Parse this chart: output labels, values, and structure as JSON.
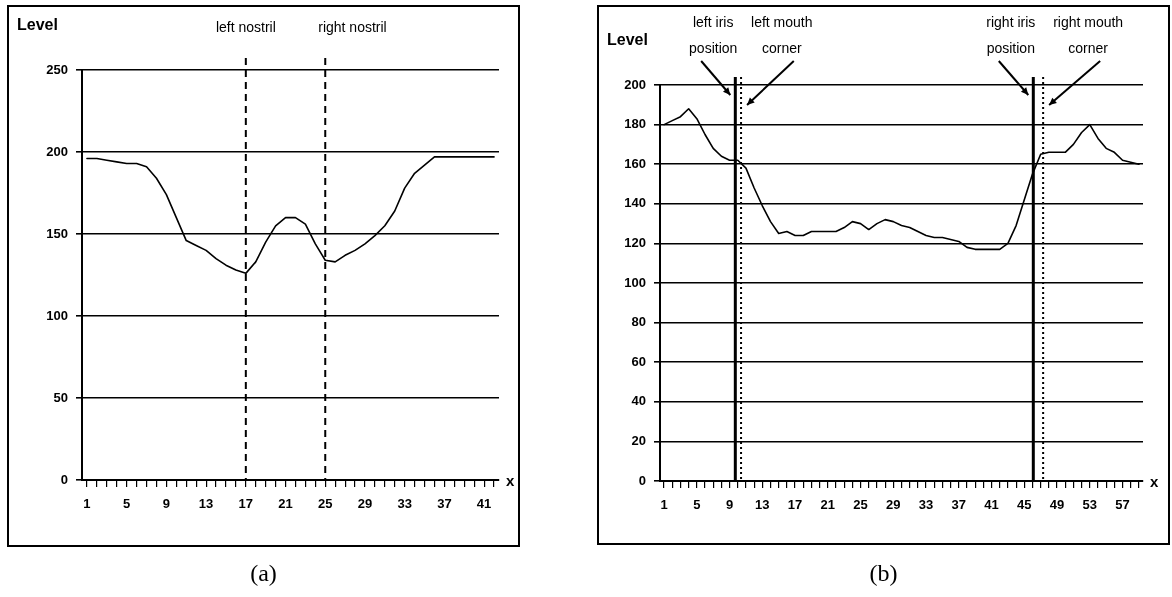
{
  "chart_data": [
    {
      "type": "line",
      "ylabel": "Level",
      "xlabel": "x",
      "x": [
        1,
        2,
        3,
        4,
        5,
        6,
        7,
        8,
        9,
        10,
        11,
        12,
        13,
        14,
        15,
        16,
        17,
        18,
        19,
        20,
        21,
        22,
        23,
        24,
        25,
        26,
        27,
        28,
        29,
        30,
        31,
        32,
        33,
        34,
        35,
        36,
        37,
        38,
        39,
        40,
        41,
        42
      ],
      "series": [
        {
          "color": "#000000",
          "values": [
            196,
            196,
            195,
            194,
            193,
            193,
            191,
            184,
            174,
            160,
            146,
            143,
            140,
            135,
            131,
            128,
            126,
            133,
            145,
            155,
            160,
            160,
            156,
            144,
            134,
            133,
            137,
            140,
            144,
            149,
            155,
            164,
            178,
            187,
            192,
            197,
            197,
            197,
            197,
            197,
            197,
            197
          ]
        }
      ],
      "xlim": [
        0.5,
        42.5
      ],
      "xticks": [
        1,
        {
          "value": 2,
          "label": null
        },
        {
          "value": 3,
          "label": null
        },
        {
          "value": 4,
          "label": null
        },
        5,
        {
          "value": 6,
          "label": null
        },
        {
          "value": 7,
          "label": null
        },
        {
          "value": 8,
          "label": null
        },
        9,
        {
          "value": 10,
          "label": null
        },
        {
          "value": 11,
          "label": null
        },
        {
          "value": 12,
          "label": null
        },
        13,
        {
          "value": 14,
          "label": null
        },
        {
          "value": 15,
          "label": null
        },
        {
          "value": 16,
          "label": null
        },
        17,
        {
          "value": 18,
          "label": null
        },
        {
          "value": 19,
          "label": null
        },
        {
          "value": 20,
          "label": null
        },
        21,
        {
          "value": 22,
          "label": null
        },
        {
          "value": 23,
          "label": null
        },
        {
          "value": 24,
          "label": null
        },
        25,
        {
          "value": 26,
          "label": null
        },
        {
          "value": 27,
          "label": null
        },
        {
          "value": 28,
          "label": null
        },
        29,
        {
          "value": 30,
          "label": null
        },
        {
          "value": 31,
          "label": null
        },
        {
          "value": 32,
          "label": null
        },
        33,
        {
          "value": 34,
          "label": null
        },
        {
          "value": 35,
          "label": null
        },
        {
          "value": 36,
          "label": null
        },
        37,
        {
          "value": 38,
          "label": null
        },
        {
          "value": 39,
          "label": null
        },
        {
          "value": 40,
          "label": null
        },
        41,
        {
          "value": 42,
          "label": null
        }
      ],
      "ylim": [
        0,
        250
      ],
      "yticks": [
        0,
        50,
        100,
        150,
        200,
        250
      ],
      "grid": "y",
      "marker": "none",
      "line_style": "solid",
      "ref_lines": [
        {
          "axis": "x",
          "value": 17,
          "label": "left nostril",
          "line_style": "dashed"
        },
        {
          "axis": "x",
          "value": 25,
          "label": "right nostril",
          "line_style": "dashed"
        }
      ],
      "annotations": [
        "(a)"
      ]
    },
    {
      "type": "line",
      "ylabel": "Level",
      "xlabel": "x",
      "x": [
        1,
        2,
        3,
        4,
        5,
        6,
        7,
        8,
        9,
        10,
        11,
        12,
        13,
        14,
        15,
        16,
        17,
        18,
        19,
        20,
        21,
        22,
        23,
        24,
        25,
        26,
        27,
        28,
        29,
        30,
        31,
        32,
        33,
        34,
        35,
        36,
        37,
        38,
        39,
        40,
        41,
        42,
        43,
        44,
        45,
        46,
        47,
        48,
        49,
        50,
        51,
        52,
        53,
        54,
        55,
        56,
        57,
        58,
        59
      ],
      "series": [
        {
          "color": "#000000",
          "values": [
            180,
            182,
            184,
            188,
            183,
            175,
            168,
            164,
            162,
            162,
            158,
            148,
            139,
            131,
            125,
            126,
            124,
            124,
            126,
            126,
            126,
            126,
            128,
            131,
            130,
            127,
            130,
            132,
            131,
            129,
            128,
            126,
            124,
            123,
            123,
            122,
            121,
            118,
            117,
            117,
            117,
            117,
            120,
            129,
            142,
            155,
            165,
            166,
            166,
            166,
            170,
            176,
            180,
            173,
            168,
            166,
            162,
            161,
            160
          ]
        }
      ],
      "xlim": [
        0.5,
        59.5
      ],
      "xticks": [
        1,
        {
          "value": 2,
          "label": null
        },
        {
          "value": 3,
          "label": null
        },
        {
          "value": 4,
          "label": null
        },
        5,
        {
          "value": 6,
          "label": null
        },
        {
          "value": 7,
          "label": null
        },
        {
          "value": 8,
          "label": null
        },
        9,
        {
          "value": 10,
          "label": null
        },
        {
          "value": 11,
          "label": null
        },
        {
          "value": 12,
          "label": null
        },
        13,
        {
          "value": 14,
          "label": null
        },
        {
          "value": 15,
          "label": null
        },
        {
          "value": 16,
          "label": null
        },
        17,
        {
          "value": 18,
          "label": null
        },
        {
          "value": 19,
          "label": null
        },
        {
          "value": 20,
          "label": null
        },
        21,
        {
          "value": 22,
          "label": null
        },
        {
          "value": 23,
          "label": null
        },
        {
          "value": 24,
          "label": null
        },
        25,
        {
          "value": 26,
          "label": null
        },
        {
          "value": 27,
          "label": null
        },
        {
          "value": 28,
          "label": null
        },
        29,
        {
          "value": 30,
          "label": null
        },
        {
          "value": 31,
          "label": null
        },
        {
          "value": 32,
          "label": null
        },
        33,
        {
          "value": 34,
          "label": null
        },
        {
          "value": 35,
          "label": null
        },
        {
          "value": 36,
          "label": null
        },
        37,
        {
          "value": 38,
          "label": null
        },
        {
          "value": 39,
          "label": null
        },
        {
          "value": 40,
          "label": null
        },
        41,
        {
          "value": 42,
          "label": null
        },
        {
          "value": 43,
          "label": null
        },
        {
          "value": 44,
          "label": null
        },
        45,
        {
          "value": 46,
          "label": null
        },
        {
          "value": 47,
          "label": null
        },
        {
          "value": 48,
          "label": null
        },
        49,
        {
          "value": 50,
          "label": null
        },
        {
          "value": 51,
          "label": null
        },
        {
          "value": 52,
          "label": null
        },
        53,
        {
          "value": 54,
          "label": null
        },
        {
          "value": 55,
          "label": null
        },
        {
          "value": 56,
          "label": null
        },
        57,
        {
          "value": 58,
          "label": null
        },
        {
          "value": 59,
          "label": null
        }
      ],
      "ylim": [
        0,
        200
      ],
      "yticks": [
        0,
        20,
        40,
        60,
        80,
        100,
        120,
        140,
        160,
        180,
        200
      ],
      "grid": "y",
      "marker": "none",
      "line_style": "solid",
      "ref_lines": [
        {
          "axis": "x",
          "value": 9.7,
          "label": "left iris position",
          "line_style": "solid"
        },
        {
          "axis": "x",
          "value": 10.4,
          "label": "left mouth corner",
          "line_style": "dotted"
        },
        {
          "axis": "x",
          "value": 46.1,
          "label": "right iris position",
          "line_style": "solid"
        },
        {
          "axis": "x",
          "value": 47.3,
          "label": "right mouth corner",
          "line_style": "dotted"
        }
      ],
      "annotations": [
        "(b)"
      ]
    }
  ]
}
